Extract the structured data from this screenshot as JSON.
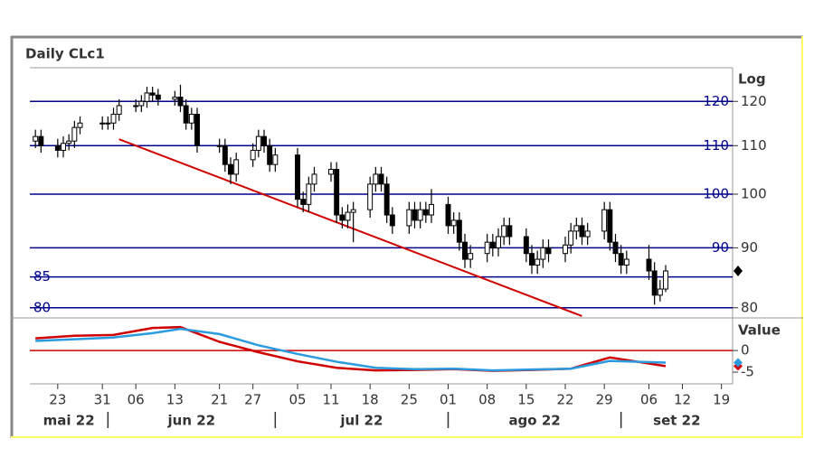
{
  "chart_data": [
    {
      "type": "candlestick",
      "title": "Daily CLc1",
      "scale_label": "Log",
      "log_scale": true,
      "x": [
        "2022-05-19",
        "2022-05-20",
        "2022-05-23",
        "2022-05-24",
        "2022-05-25",
        "2022-05-26",
        "2022-05-27",
        "2022-05-31",
        "2022-06-01",
        "2022-06-02",
        "2022-06-03",
        "2022-06-06",
        "2022-06-07",
        "2022-06-08",
        "2022-06-09",
        "2022-06-10",
        "2022-06-13",
        "2022-06-14",
        "2022-06-15",
        "2022-06-16",
        "2022-06-17",
        "2022-06-21",
        "2022-06-22",
        "2022-06-23",
        "2022-06-24",
        "2022-06-27",
        "2022-06-28",
        "2022-06-29",
        "2022-06-30",
        "2022-07-01",
        "2022-07-05",
        "2022-07-06",
        "2022-07-07",
        "2022-07-08",
        "2022-07-11",
        "2022-07-12",
        "2022-07-13",
        "2022-07-14",
        "2022-07-15",
        "2022-07-18",
        "2022-07-19",
        "2022-07-20",
        "2022-07-21",
        "2022-07-22",
        "2022-07-25",
        "2022-07-26",
        "2022-07-27",
        "2022-07-28",
        "2022-07-29",
        "2022-08-01",
        "2022-08-02",
        "2022-08-03",
        "2022-08-04",
        "2022-08-05",
        "2022-08-08",
        "2022-08-09",
        "2022-08-10",
        "2022-08-11",
        "2022-08-12",
        "2022-08-15",
        "2022-08-16",
        "2022-08-17",
        "2022-08-18",
        "2022-08-19",
        "2022-08-22",
        "2022-08-23",
        "2022-08-24",
        "2022-08-25",
        "2022-08-26",
        "2022-08-29",
        "2022-08-30",
        "2022-08-31",
        "2022-09-01",
        "2022-09-02",
        "2022-09-06",
        "2022-09-07",
        "2022-09-08",
        "2022-09-09"
      ],
      "open": [
        111,
        112,
        110,
        109,
        110.5,
        111,
        114,
        115,
        115,
        115,
        117,
        119,
        119,
        120,
        122,
        121.5,
        120.5,
        121,
        119,
        115,
        117,
        110,
        110,
        106,
        104,
        107,
        109,
        112,
        110,
        106,
        108,
        99,
        98,
        102,
        104,
        105,
        96,
        95,
        96.5,
        97,
        102,
        104,
        102,
        96,
        94,
        97,
        95,
        97,
        96,
        98,
        94,
        95,
        91,
        88,
        89,
        91,
        90,
        92,
        94,
        92,
        89,
        87,
        88,
        90,
        89,
        90.5,
        93,
        94,
        92,
        93,
        97,
        91,
        89,
        87,
        88,
        86,
        82,
        83
      ],
      "high": [
        113.5,
        113.5,
        111.5,
        112,
        112.5,
        115.5,
        116.5,
        116.5,
        116.5,
        118.5,
        120.5,
        120.5,
        121.5,
        123.5,
        123.5,
        123,
        122.5,
        124,
        120.5,
        118.5,
        118.5,
        111.5,
        111.5,
        107.5,
        108.5,
        110.5,
        113.5,
        113.5,
        111.5,
        109.5,
        109.5,
        100.5,
        103.5,
        105.5,
        106.5,
        106.5,
        97.5,
        98,
        98.5,
        103.5,
        105.5,
        105.5,
        103.5,
        97.5,
        98.5,
        98.5,
        98.5,
        98.5,
        101,
        99.5,
        96.5,
        96.5,
        92.5,
        90.5,
        92.5,
        92.5,
        93.5,
        95.5,
        95.5,
        93.5,
        90.5,
        89.5,
        91.5,
        91.5,
        92,
        94.5,
        95.5,
        95.5,
        94.5,
        98.5,
        98.5,
        92.5,
        90.5,
        89.5,
        90.5,
        87.5,
        84.5,
        87
      ],
      "low": [
        109.5,
        108.5,
        107.5,
        107.5,
        109,
        109.5,
        112.5,
        113.5,
        113.5,
        113.5,
        115.5,
        117.5,
        117.5,
        118.5,
        120,
        119,
        119,
        117.5,
        113.5,
        113.5,
        108.5,
        108.5,
        104.5,
        102,
        102.5,
        105.5,
        107.5,
        108.5,
        104.5,
        104.5,
        97.5,
        96.5,
        96.5,
        100.5,
        102.5,
        94.5,
        93.5,
        93.5,
        91,
        95.5,
        100.5,
        100.5,
        94.5,
        92.5,
        92.5,
        93.5,
        93.5,
        94.5,
        94.5,
        92.5,
        92.5,
        89.5,
        86.5,
        86.5,
        87.5,
        88.5,
        88.5,
        90.5,
        90.5,
        87.5,
        85.5,
        85.5,
        86.5,
        87.5,
        87.5,
        89,
        91.5,
        90.5,
        90.5,
        91.5,
        89.5,
        87.5,
        85.5,
        85.5,
        84.5,
        80.5,
        81,
        82.5
      ],
      "close": [
        112,
        110,
        109,
        110.5,
        111,
        114,
        115,
        115,
        115,
        117,
        119,
        119,
        120,
        122,
        121.5,
        120.5,
        121,
        119,
        115,
        117,
        110,
        110,
        106,
        104,
        107,
        109,
        112,
        110,
        106,
        108,
        99,
        98,
        102,
        104,
        105,
        96,
        95,
        96.5,
        97,
        102,
        104,
        102,
        96,
        94,
        97,
        95,
        97,
        96,
        98,
        94,
        95,
        91,
        88,
        89,
        91,
        90,
        92,
        94,
        92,
        89,
        87,
        88,
        90,
        89,
        90.5,
        93,
        94,
        92,
        93,
        97,
        91,
        89,
        87,
        88,
        86,
        82,
        83,
        86
      ],
      "up_color": "#ffffff",
      "down_color": "#000000",
      "xlim": [
        "2022-05-18",
        "2022-09-21"
      ],
      "ylim": [
        78.7,
        128.2
      ],
      "yticks": [
        80,
        90,
        100,
        110,
        120
      ],
      "hlines": [
        {
          "value": 120,
          "side": "right"
        },
        {
          "value": 110,
          "side": "right"
        },
        {
          "value": 100,
          "side": "right"
        },
        {
          "value": 90,
          "side": "right"
        },
        {
          "value": 85,
          "side": "left"
        },
        {
          "value": 80,
          "side": "left"
        }
      ],
      "hline_color": "#00008b",
      "trendline": {
        "x": [
          "2022-06-03",
          "2022-08-25"
        ],
        "values": [
          111.4,
          78.7
        ],
        "color": "#d00000"
      },
      "xticks": [
        {
          "value": "2022-05-23",
          "label": "23"
        },
        {
          "value": "2022-05-31",
          "label": "31"
        },
        {
          "value": "2022-06-06",
          "label": "06"
        },
        {
          "value": "2022-06-13",
          "label": "13"
        },
        {
          "value": "2022-06-21",
          "label": "21"
        },
        {
          "value": "2022-06-27",
          "label": "27"
        },
        {
          "value": "2022-07-05",
          "label": "05"
        },
        {
          "value": "2022-07-11",
          "label": "11"
        },
        {
          "value": "2022-07-18",
          "label": "18"
        },
        {
          "value": "2022-07-25",
          "label": "25"
        },
        {
          "value": "2022-08-01",
          "label": "01"
        },
        {
          "value": "2022-08-08",
          "label": "08"
        },
        {
          "value": "2022-08-15",
          "label": "15"
        },
        {
          "value": "2022-08-22",
          "label": "22"
        },
        {
          "value": "2022-08-29",
          "label": "29"
        },
        {
          "value": "2022-09-06",
          "label": "06"
        },
        {
          "value": "2022-09-12",
          "label": "12"
        },
        {
          "value": "2022-09-19",
          "label": "19"
        }
      ],
      "month_labels": [
        "mai 22",
        "jun 22",
        "jul 22",
        "ago 22",
        "set 22"
      ],
      "month_starts": [
        "2022-06-01",
        "2022-07-01",
        "2022-08-01",
        "2022-09-01"
      ]
    },
    {
      "type": "line",
      "scale_label": "Value",
      "x": [
        "2022-05-19",
        "2022-05-26",
        "2022-06-02",
        "2022-06-09",
        "2022-06-14",
        "2022-06-21",
        "2022-06-28",
        "2022-07-05",
        "2022-07-12",
        "2022-07-19",
        "2022-07-26",
        "2022-08-02",
        "2022-08-09",
        "2022-08-16",
        "2022-08-23",
        "2022-08-30",
        "2022-09-09"
      ],
      "series": [
        {
          "color": "#d00000",
          "values": [
            2.8,
            3.4,
            3.6,
            5.2,
            5.4,
            2.0,
            -0.4,
            -2.5,
            -4.0,
            -4.6,
            -4.5,
            -4.3,
            -4.7,
            -4.5,
            -4.2,
            -1.6,
            -3.6
          ]
        },
        {
          "color": "#2b9be0",
          "values": [
            2.2,
            2.6,
            3.0,
            4.0,
            5.0,
            3.8,
            1.2,
            -0.8,
            -2.6,
            -4.0,
            -4.3,
            -4.2,
            -4.6,
            -4.4,
            -4.2,
            -2.4,
            -2.8
          ]
        }
      ],
      "ylim": [
        -7.7,
        6.9
      ],
      "yticks": [
        0,
        -5
      ],
      "zero_line_color": "#d00000"
    }
  ]
}
